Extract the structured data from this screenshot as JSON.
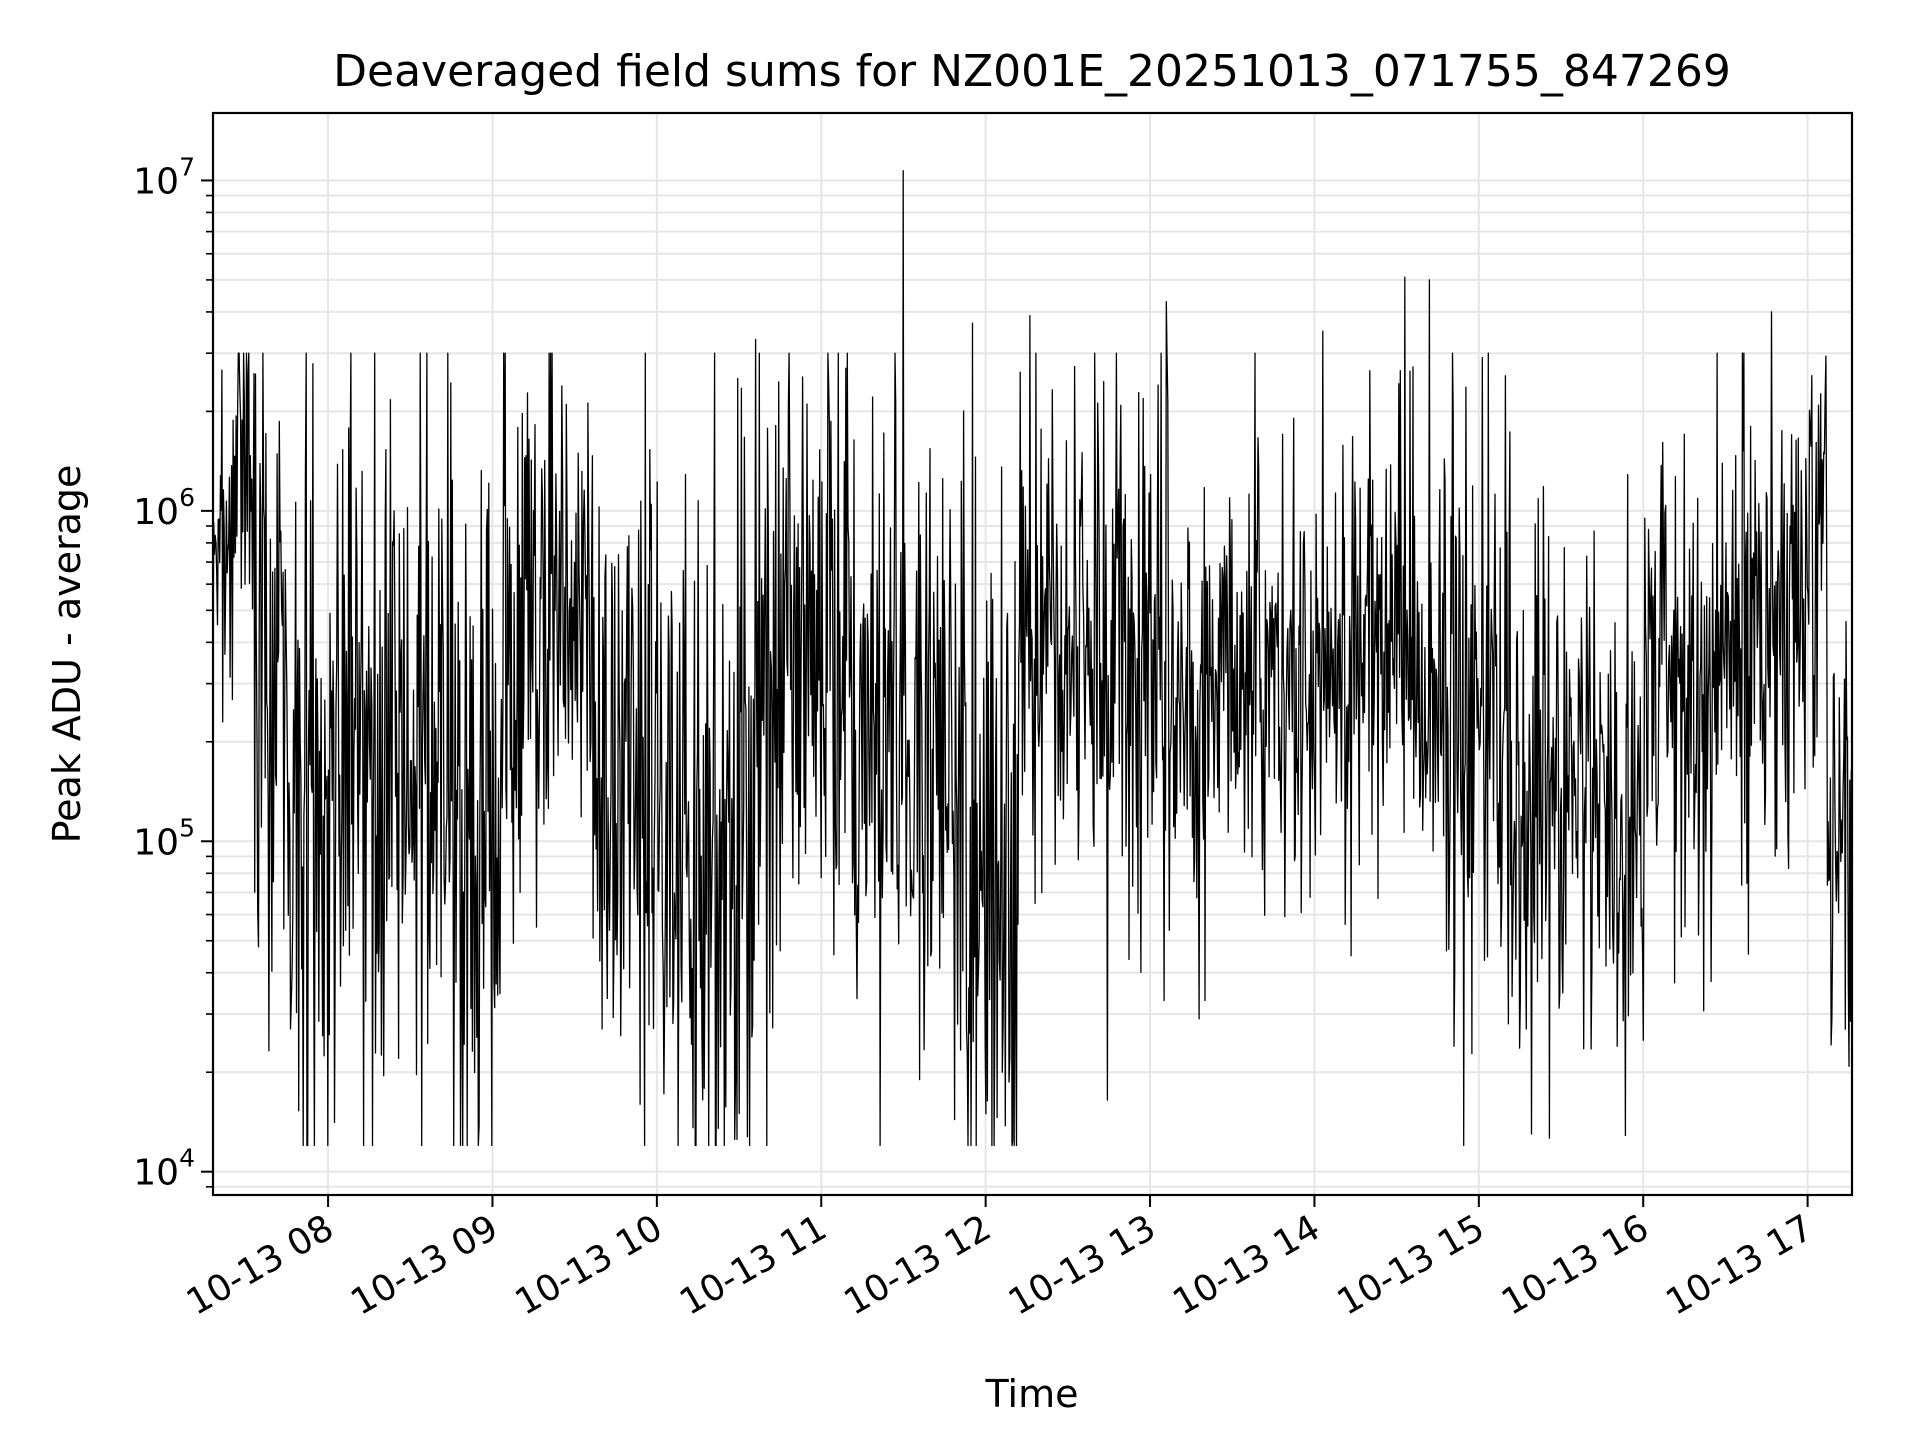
{
  "chart_data": {
    "type": "line",
    "title": "Deaveraged field sums for NZ001E_20251013_071755_847269",
    "xlabel": "Time",
    "ylabel": "Peak ADU - average",
    "yscale": "log",
    "ylim": [
      8500,
      16000000
    ],
    "xlim_hours": [
      7.3,
      17.27
    ],
    "x_ticks": [
      {
        "label": "10-13 08",
        "hour": 8
      },
      {
        "label": "10-13 09",
        "hour": 9
      },
      {
        "label": "10-13 10",
        "hour": 10
      },
      {
        "label": "10-13 11",
        "hour": 11
      },
      {
        "label": "10-13 12",
        "hour": 12
      },
      {
        "label": "10-13 13",
        "hour": 13
      },
      {
        "label": "10-13 14",
        "hour": 14
      },
      {
        "label": "10-13 15",
        "hour": 15
      },
      {
        "label": "10-13 16",
        "hour": 16
      },
      {
        "label": "10-13 17",
        "hour": 17
      }
    ],
    "y_ticks": [
      {
        "base": "10",
        "exponent": "4",
        "value": 10000
      },
      {
        "base": "10",
        "exponent": "5",
        "value": 100000
      },
      {
        "base": "10",
        "exponent": "6",
        "value": 1000000
      },
      {
        "base": "10",
        "exponent": "7",
        "value": 10000000
      }
    ],
    "grid": true,
    "line_color": "#000000",
    "grid_color": "#e6e6e6",
    "series": [
      {
        "name": "NZ001E_20251013_071755_847269",
        "segments": [
          {
            "t0": 7.3,
            "t1": 7.4,
            "level": 650000,
            "spread": 0.25
          },
          {
            "t0": 7.4,
            "t1": 7.55,
            "level": 1300000,
            "spread": 0.35
          },
          {
            "t0": 7.55,
            "t1": 7.75,
            "level": 350000,
            "spread": 0.45
          },
          {
            "t0": 7.75,
            "t1": 8.1,
            "level": 120000,
            "spread": 0.6
          },
          {
            "t0": 8.1,
            "t1": 8.8,
            "level": 150000,
            "spread": 0.55
          },
          {
            "t0": 8.8,
            "t1": 9.05,
            "level": 100000,
            "spread": 0.6
          },
          {
            "t0": 9.05,
            "t1": 9.6,
            "level": 500000,
            "spread": 0.45
          },
          {
            "t0": 9.6,
            "t1": 9.95,
            "level": 200000,
            "spread": 0.55
          },
          {
            "t0": 9.95,
            "t1": 10.5,
            "level": 90000,
            "spread": 0.6
          },
          {
            "t0": 10.5,
            "t1": 10.7,
            "level": 150000,
            "spread": 0.65
          },
          {
            "t0": 10.7,
            "t1": 11.2,
            "level": 350000,
            "spread": 0.5
          },
          {
            "t0": 11.2,
            "t1": 11.8,
            "level": 200000,
            "spread": 0.55
          },
          {
            "t0": 11.8,
            "t1": 12.2,
            "level": 80000,
            "spread": 0.6
          },
          {
            "t0": 12.2,
            "t1": 12.7,
            "level": 500000,
            "spread": 0.4
          },
          {
            "t0": 12.7,
            "t1": 13.2,
            "level": 350000,
            "spread": 0.45
          },
          {
            "t0": 13.2,
            "t1": 14.0,
            "level": 280000,
            "spread": 0.35
          },
          {
            "t0": 14.0,
            "t1": 14.8,
            "level": 350000,
            "spread": 0.35
          },
          {
            "t0": 14.8,
            "t1": 15.2,
            "level": 250000,
            "spread": 0.45
          },
          {
            "t0": 15.2,
            "t1": 16.0,
            "level": 120000,
            "spread": 0.4
          },
          {
            "t0": 16.0,
            "t1": 16.6,
            "level": 300000,
            "spread": 0.4
          },
          {
            "t0": 16.6,
            "t1": 17.05,
            "level": 450000,
            "spread": 0.4
          },
          {
            "t0": 17.05,
            "t1": 17.12,
            "level": 1200000,
            "spread": 0.3
          },
          {
            "t0": 17.12,
            "t1": 17.27,
            "level": 90000,
            "spread": 0.35
          }
        ],
        "spikes": [
          {
            "t": 7.55,
            "value": 2600000
          },
          {
            "t": 7.86,
            "value": 1260000
          },
          {
            "t": 8.4,
            "value": 1000000
          },
          {
            "t": 8.82,
            "value": 12000
          },
          {
            "t": 9.45,
            "value": 2100000
          },
          {
            "t": 9.9,
            "value": 16000
          },
          {
            "t": 10.5,
            "value": 15000
          },
          {
            "t": 10.6,
            "value": 3300000
          },
          {
            "t": 11.15,
            "value": 2700000
          },
          {
            "t": 11.5,
            "value": 10700000
          },
          {
            "t": 11.6,
            "value": 19000
          },
          {
            "t": 11.92,
            "value": 3700000
          },
          {
            "t": 12.1,
            "value": 20000
          },
          {
            "t": 12.27,
            "value": 3900000
          },
          {
            "t": 13.1,
            "value": 4300000
          },
          {
            "t": 13.3,
            "value": 29000
          },
          {
            "t": 14.05,
            "value": 3500000
          },
          {
            "t": 14.55,
            "value": 5100000
          },
          {
            "t": 14.7,
            "value": 5000000
          },
          {
            "t": 15.18,
            "value": 28000
          },
          {
            "t": 16.0,
            "value": 25000
          },
          {
            "t": 16.45,
            "value": 3000000
          },
          {
            "t": 16.78,
            "value": 4000000
          },
          {
            "t": 17.23,
            "value": 27000
          }
        ]
      }
    ]
  }
}
